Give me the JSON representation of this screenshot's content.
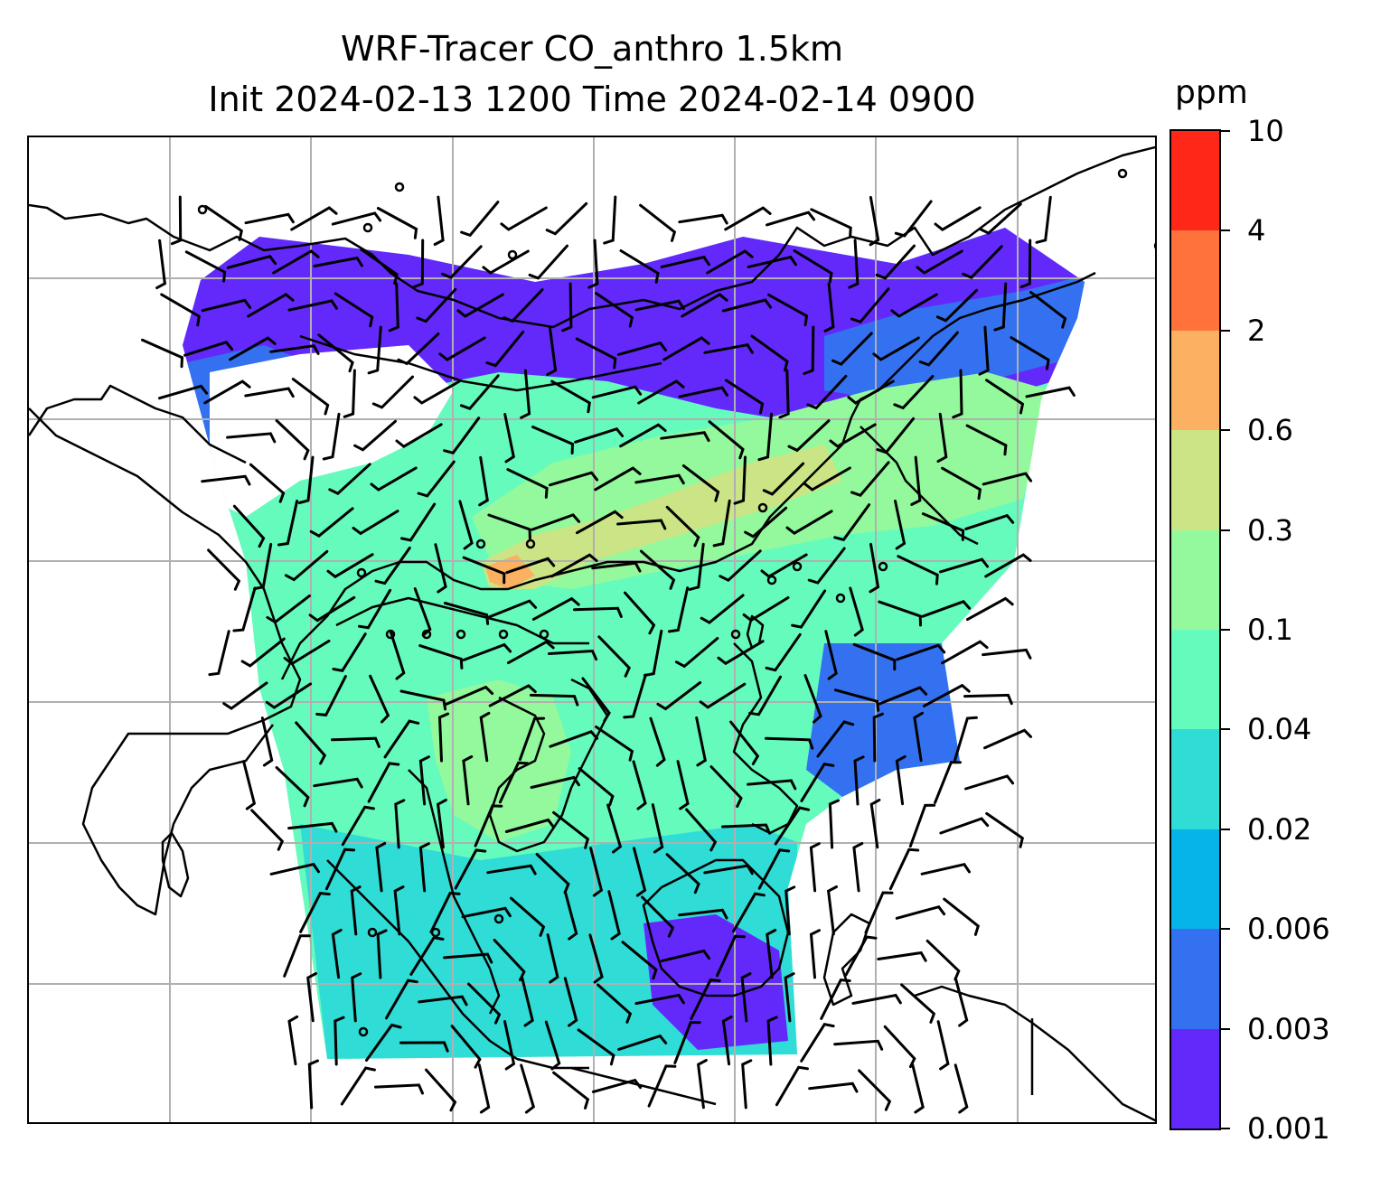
{
  "title": {
    "line1": "WRF-Tracer CO_anthro 1.5km",
    "line2": "Init 2024-02-13 1200 Time 2024-02-14 0900"
  },
  "colorbar": {
    "unit": "ppm",
    "levels": [
      "0.001",
      "0.003",
      "0.006",
      "0.02",
      "0.04",
      "0.1",
      "0.3",
      "0.6",
      "2",
      "4",
      "10"
    ],
    "colors": [
      "#6329fb",
      "#3471f1",
      "#07b4e9",
      "#2fdcd6",
      "#65fbbd",
      "#93f99c",
      "#cbe486",
      "#fcb061",
      "#ff723c",
      "#ff2818"
    ]
  },
  "map": {
    "gridlines": true,
    "grid_color": "#b0b0b0",
    "coastline_color": "#000000",
    "wind_barbs": true
  }
}
